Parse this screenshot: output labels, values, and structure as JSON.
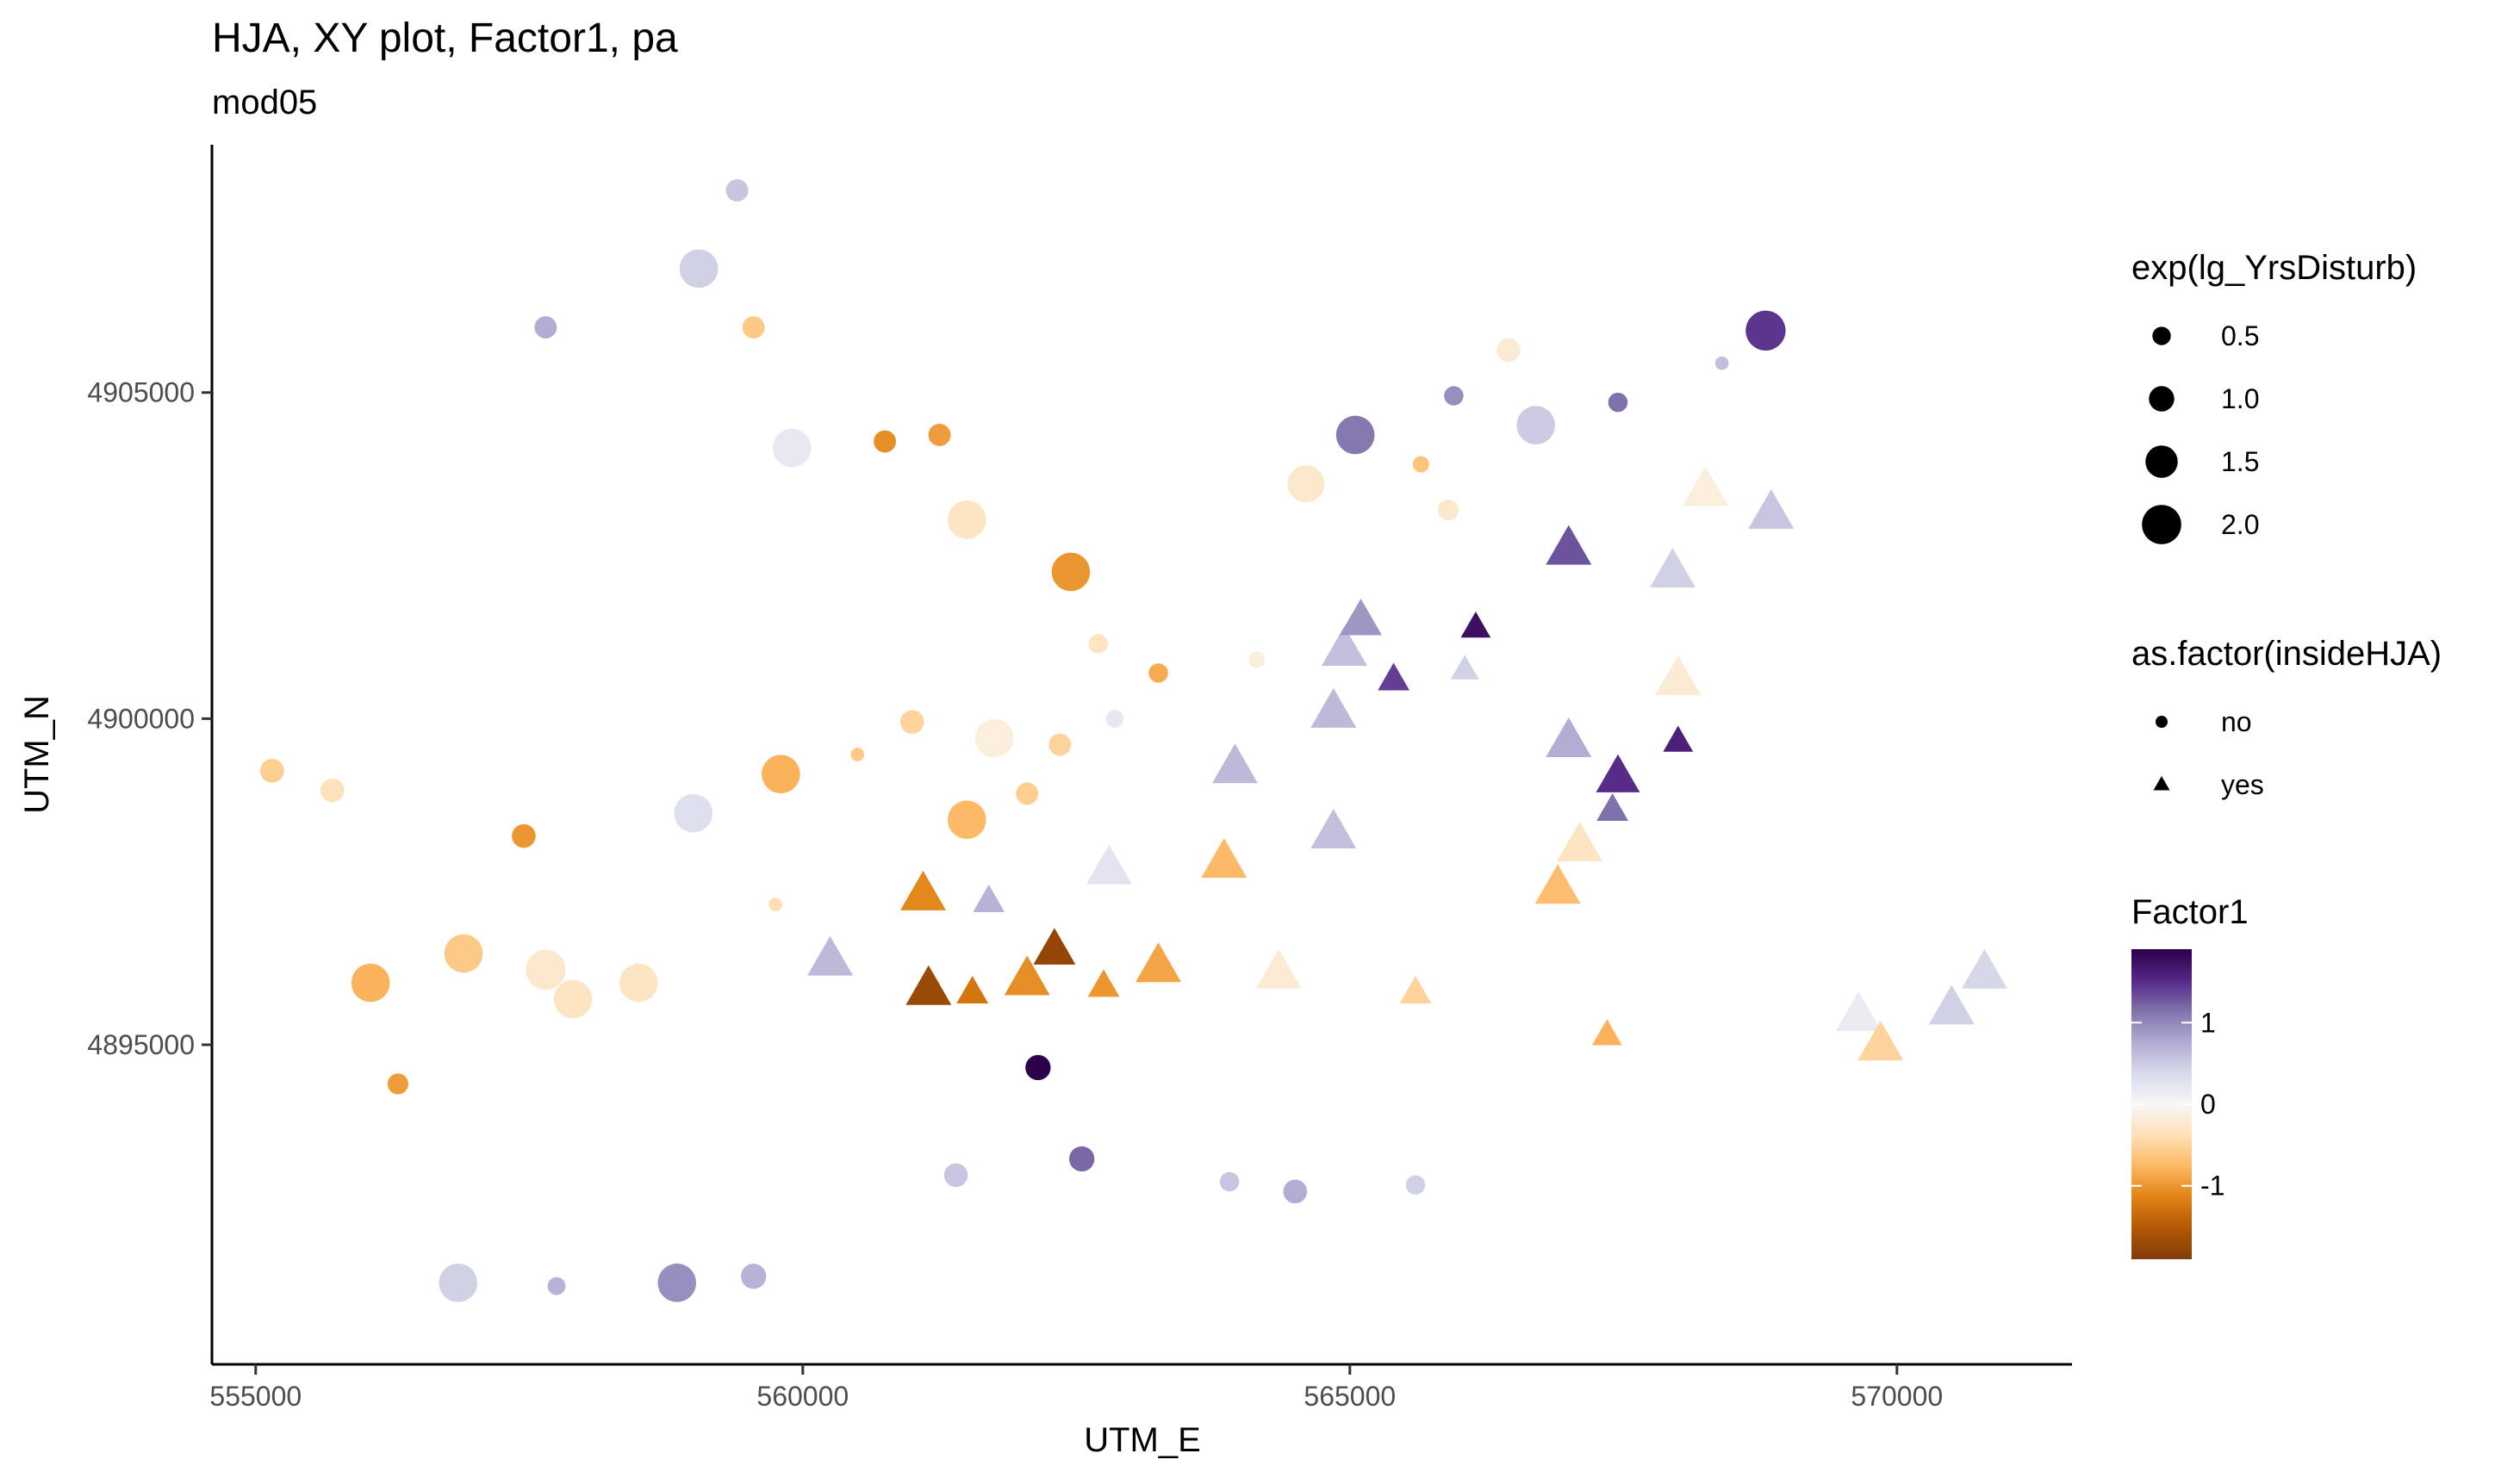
{
  "chart_data": {
    "type": "scatter",
    "title": "HJA, XY plot, Factor1, pa",
    "subtitle": "mod05",
    "xlabel": "UTM_E",
    "ylabel": "UTM_N",
    "xlim": [
      554600,
      571600
    ],
    "ylim": [
      4890100,
      4908800
    ],
    "x_ticks": [
      555000,
      560000,
      565000,
      570000
    ],
    "x_tick_labels": [
      "555000",
      "560000",
      "565000",
      "570000"
    ],
    "y_ticks": [
      4895000,
      4900000,
      4905000
    ],
    "y_tick_labels": [
      "4895000",
      "4900000",
      "4905000"
    ],
    "grid": false,
    "legend_position": "right",
    "color_scale": {
      "title": "Factor1",
      "palette": [
        "#7f3b08",
        "#b35806",
        "#e08214",
        "#fdb863",
        "#fee0b6",
        "#f7f7f7",
        "#d8daeb",
        "#b2abd2",
        "#8073ac",
        "#542788",
        "#2d004b"
      ],
      "range": [
        -1.9,
        1.9
      ],
      "breaks": [
        1,
        0,
        -1
      ],
      "break_labels": [
        "1",
        "0",
        "-1"
      ]
    },
    "size_legend": {
      "title": "exp(lg_YrsDisturb)",
      "values": [
        0.5,
        1.0,
        1.5,
        2.0
      ],
      "labels": [
        "0.5",
        "1.0",
        "1.5",
        "2.0"
      ]
    },
    "shape_legend": {
      "title": "as.factor(insideHJA)",
      "levels": [
        "no",
        "yes"
      ]
    },
    "points": [
      {
        "x": 559400,
        "y": 4908100,
        "f": 0.55,
        "s": 0.7,
        "shape": "no"
      },
      {
        "x": 559050,
        "y": 4906900,
        "f": 0.45,
        "s": 1.8,
        "shape": "no"
      },
      {
        "x": 557650,
        "y": 4906000,
        "f": 0.75,
        "s": 0.7,
        "shape": "no"
      },
      {
        "x": 559550,
        "y": 4906000,
        "f": -0.6,
        "s": 0.7,
        "shape": "no"
      },
      {
        "x": 559900,
        "y": 4904150,
        "f": 0.2,
        "s": 1.8,
        "shape": "no"
      },
      {
        "x": 560750,
        "y": 4904250,
        "f": -1.05,
        "s": 0.7,
        "shape": "no"
      },
      {
        "x": 561250,
        "y": 4904350,
        "f": -0.95,
        "s": 0.7,
        "shape": "no"
      },
      {
        "x": 561500,
        "y": 4903050,
        "f": -0.3,
        "s": 1.8,
        "shape": "no"
      },
      {
        "x": 562450,
        "y": 4902250,
        "f": -1.0,
        "s": 1.8,
        "shape": "no"
      },
      {
        "x": 562700,
        "y": 4901150,
        "f": -0.3,
        "s": 0.5,
        "shape": "no"
      },
      {
        "x": 563250,
        "y": 4900700,
        "f": -0.85,
        "s": 0.5,
        "shape": "no"
      },
      {
        "x": 564150,
        "y": 4900900,
        "f": -0.15,
        "s": 0.3,
        "shape": "no"
      },
      {
        "x": 564600,
        "y": 4903600,
        "f": -0.25,
        "s": 1.7,
        "shape": "no"
      },
      {
        "x": 565050,
        "y": 4904350,
        "f": 1.1,
        "s": 1.8,
        "shape": "no"
      },
      {
        "x": 565650,
        "y": 4903900,
        "f": -0.65,
        "s": 0.3,
        "shape": "no"
      },
      {
        "x": 565900,
        "y": 4903200,
        "f": -0.25,
        "s": 0.6,
        "shape": "no"
      },
      {
        "x": 565950,
        "y": 4904950,
        "f": 0.95,
        "s": 0.5,
        "shape": "no"
      },
      {
        "x": 566450,
        "y": 4905650,
        "f": -0.2,
        "s": 0.8,
        "shape": "no"
      },
      {
        "x": 566700,
        "y": 4904500,
        "f": 0.5,
        "s": 1.8,
        "shape": "no"
      },
      {
        "x": 567450,
        "y": 4904850,
        "f": 1.15,
        "s": 0.5,
        "shape": "no"
      },
      {
        "x": 568400,
        "y": 4905450,
        "f": 0.6,
        "s": 0.1,
        "shape": "no"
      },
      {
        "x": 568800,
        "y": 4905950,
        "f": 1.45,
        "s": 1.9,
        "shape": "no"
      },
      {
        "x": 555150,
        "y": 4899200,
        "f": -0.55,
        "s": 0.8,
        "shape": "no"
      },
      {
        "x": 555700,
        "y": 4898900,
        "f": -0.35,
        "s": 0.8,
        "shape": "no"
      },
      {
        "x": 557450,
        "y": 4898200,
        "f": -1.0,
        "s": 0.8,
        "shape": "no"
      },
      {
        "x": 559000,
        "y": 4898550,
        "f": 0.3,
        "s": 1.8,
        "shape": "no"
      },
      {
        "x": 559800,
        "y": 4899150,
        "f": -0.8,
        "s": 1.8,
        "shape": "no"
      },
      {
        "x": 559750,
        "y": 4897150,
        "f": -0.4,
        "s": 0.1,
        "shape": "no"
      },
      {
        "x": 560500,
        "y": 4899450,
        "f": -0.6,
        "s": 0.1,
        "shape": "no"
      },
      {
        "x": 561000,
        "y": 4899950,
        "f": -0.5,
        "s": 0.8,
        "shape": "no"
      },
      {
        "x": 561500,
        "y": 4898450,
        "f": -0.75,
        "s": 1.8,
        "shape": "no"
      },
      {
        "x": 561750,
        "y": 4899700,
        "f": -0.15,
        "s": 1.8,
        "shape": "no"
      },
      {
        "x": 562050,
        "y": 4898850,
        "f": -0.55,
        "s": 0.7,
        "shape": "no"
      },
      {
        "x": 562350,
        "y": 4899600,
        "f": -0.5,
        "s": 0.7,
        "shape": "no"
      },
      {
        "x": 562850,
        "y": 4900000,
        "f": 0.2,
        "s": 0.4,
        "shape": "no"
      },
      {
        "x": 556050,
        "y": 4895950,
        "f": -0.8,
        "s": 1.8,
        "shape": "no"
      },
      {
        "x": 556900,
        "y": 4896400,
        "f": -0.6,
        "s": 1.8,
        "shape": "no"
      },
      {
        "x": 557650,
        "y": 4896150,
        "f": -0.25,
        "s": 1.9,
        "shape": "no"
      },
      {
        "x": 557900,
        "y": 4895700,
        "f": -0.3,
        "s": 1.8,
        "shape": "no"
      },
      {
        "x": 558500,
        "y": 4895950,
        "f": -0.3,
        "s": 1.8,
        "shape": "no"
      },
      {
        "x": 556300,
        "y": 4894400,
        "f": -0.95,
        "s": 0.6,
        "shape": "no"
      },
      {
        "x": 562150,
        "y": 4894650,
        "f": 1.9,
        "s": 0.9,
        "shape": "no"
      },
      {
        "x": 561400,
        "y": 4893000,
        "f": 0.55,
        "s": 0.8,
        "shape": "no"
      },
      {
        "x": 562550,
        "y": 4893250,
        "f": 1.2,
        "s": 0.9,
        "shape": "no"
      },
      {
        "x": 563900,
        "y": 4892900,
        "f": 0.55,
        "s": 0.5,
        "shape": "no"
      },
      {
        "x": 564500,
        "y": 4892750,
        "f": 0.75,
        "s": 0.8,
        "shape": "no"
      },
      {
        "x": 565600,
        "y": 4892850,
        "f": 0.45,
        "s": 0.5,
        "shape": "no"
      },
      {
        "x": 556850,
        "y": 4891350,
        "f": 0.45,
        "s": 1.8,
        "shape": "no"
      },
      {
        "x": 557750,
        "y": 4891300,
        "f": 0.7,
        "s": 0.4,
        "shape": "no"
      },
      {
        "x": 558850,
        "y": 4891350,
        "f": 0.95,
        "s": 1.8,
        "shape": "no"
      },
      {
        "x": 559550,
        "y": 4891450,
        "f": 0.7,
        "s": 0.9,
        "shape": "no"
      },
      {
        "x": 560250,
        "y": 4896300,
        "f": 0.65,
        "s": 1.8,
        "shape": "yes"
      },
      {
        "x": 561100,
        "y": 4897300,
        "f": -1.1,
        "s": 1.8,
        "shape": "yes"
      },
      {
        "x": 561150,
        "y": 4895850,
        "f": -1.7,
        "s": 1.8,
        "shape": "yes"
      },
      {
        "x": 561550,
        "y": 4895800,
        "f": -1.25,
        "s": 1.0,
        "shape": "yes"
      },
      {
        "x": 561700,
        "y": 4897200,
        "f": 0.7,
        "s": 1.0,
        "shape": "yes"
      },
      {
        "x": 562050,
        "y": 4896000,
        "f": -1.05,
        "s": 1.8,
        "shape": "yes"
      },
      {
        "x": 562300,
        "y": 4896450,
        "f": -1.75,
        "s": 1.6,
        "shape": "yes"
      },
      {
        "x": 562750,
        "y": 4895900,
        "f": -1.0,
        "s": 1.0,
        "shape": "yes"
      },
      {
        "x": 562800,
        "y": 4897700,
        "f": 0.25,
        "s": 1.8,
        "shape": "yes"
      },
      {
        "x": 563250,
        "y": 4896200,
        "f": -0.9,
        "s": 1.8,
        "shape": "yes"
      },
      {
        "x": 563850,
        "y": 4897800,
        "f": -0.75,
        "s": 1.8,
        "shape": "yes"
      },
      {
        "x": 563950,
        "y": 4899250,
        "f": 0.65,
        "s": 1.8,
        "shape": "yes"
      },
      {
        "x": 564350,
        "y": 4896100,
        "f": -0.2,
        "s": 1.8,
        "shape": "yes"
      },
      {
        "x": 564850,
        "y": 4898250,
        "f": 0.6,
        "s": 1.8,
        "shape": "yes"
      },
      {
        "x": 564850,
        "y": 4900100,
        "f": 0.65,
        "s": 1.8,
        "shape": "yes"
      },
      {
        "x": 564950,
        "y": 4901050,
        "f": 0.6,
        "s": 1.8,
        "shape": "yes"
      },
      {
        "x": 565100,
        "y": 4901500,
        "f": 0.9,
        "s": 1.6,
        "shape": "yes"
      },
      {
        "x": 565400,
        "y": 4900600,
        "f": 1.4,
        "s": 1.0,
        "shape": "yes"
      },
      {
        "x": 565600,
        "y": 4895800,
        "f": -0.5,
        "s": 1.0,
        "shape": "yes"
      },
      {
        "x": 566050,
        "y": 4900750,
        "f": 0.45,
        "s": 0.8,
        "shape": "yes"
      },
      {
        "x": 566150,
        "y": 4901400,
        "f": 1.75,
        "s": 0.9,
        "shape": "yes"
      },
      {
        "x": 566900,
        "y": 4897400,
        "f": -0.7,
        "s": 1.8,
        "shape": "yes"
      },
      {
        "x": 567000,
        "y": 4902600,
        "f": 1.3,
        "s": 1.8,
        "shape": "yes"
      },
      {
        "x": 567000,
        "y": 4899650,
        "f": 0.75,
        "s": 1.8,
        "shape": "yes"
      },
      {
        "x": 567100,
        "y": 4898050,
        "f": -0.3,
        "s": 1.8,
        "shape": "yes"
      },
      {
        "x": 567350,
        "y": 4895150,
        "f": -0.8,
        "s": 0.9,
        "shape": "yes"
      },
      {
        "x": 567400,
        "y": 4898600,
        "f": 1.15,
        "s": 1.0,
        "shape": "yes"
      },
      {
        "x": 567450,
        "y": 4899100,
        "f": 1.5,
        "s": 1.7,
        "shape": "yes"
      },
      {
        "x": 568000,
        "y": 4899650,
        "f": 1.6,
        "s": 0.9,
        "shape": "yes"
      },
      {
        "x": 567950,
        "y": 4902250,
        "f": 0.45,
        "s": 1.8,
        "shape": "yes"
      },
      {
        "x": 568000,
        "y": 4900600,
        "f": -0.2,
        "s": 1.8,
        "shape": "yes"
      },
      {
        "x": 568250,
        "y": 4903500,
        "f": -0.15,
        "s": 1.8,
        "shape": "yes"
      },
      {
        "x": 568850,
        "y": 4903150,
        "f": 0.55,
        "s": 1.8,
        "shape": "yes"
      },
      {
        "x": 569650,
        "y": 4895450,
        "f": 0.15,
        "s": 1.8,
        "shape": "yes"
      },
      {
        "x": 569850,
        "y": 4895000,
        "f": -0.5,
        "s": 1.8,
        "shape": "yes"
      },
      {
        "x": 570500,
        "y": 4895550,
        "f": 0.45,
        "s": 1.8,
        "shape": "yes"
      },
      {
        "x": 570800,
        "y": 4896100,
        "f": 0.4,
        "s": 1.8,
        "shape": "yes"
      }
    ]
  }
}
